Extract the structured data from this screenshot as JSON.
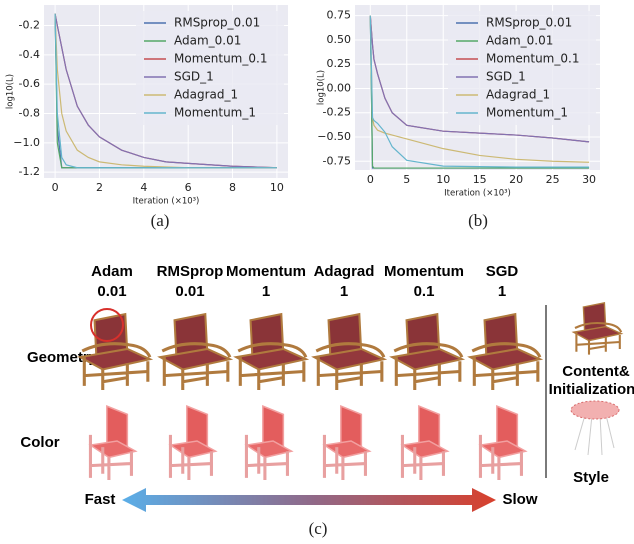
{
  "chart_data": [
    {
      "type": "line",
      "xlabel": "Iteration (×10³)",
      "ylabel": "log10(L)",
      "x": [
        0,
        0.1,
        0.3,
        0.5,
        1,
        1.5,
        2,
        3,
        4,
        5,
        6,
        8,
        10
      ],
      "xlim": [
        -0.5,
        10.5
      ],
      "xticks": [
        0,
        2,
        4,
        6,
        8,
        10
      ],
      "ylim": [
        -1.24,
        -0.06
      ],
      "yticks": [
        -1.2,
        {
          "value": -1.0,
          "label": "−1.0"
        },
        -0.8,
        -0.6,
        -0.4,
        -0.2
      ],
      "grid": true,
      "legend": "upper right",
      "series": [
        {
          "name": "RMSprop_0.01",
          "color": "#4c72b0",
          "values": [
            -0.12,
            -0.9,
            -1.17,
            -1.17,
            -1.17,
            -1.17,
            -1.17,
            -1.17,
            -1.17,
            -1.17,
            -1.17,
            -1.17,
            -1.17
          ]
        },
        {
          "name": "Adam_0.01",
          "color": "#55a868",
          "values": [
            -0.12,
            -1.0,
            -1.17,
            -1.17,
            -1.17,
            -1.17,
            -1.17,
            -1.17,
            -1.17,
            -1.17,
            -1.17,
            -1.17,
            -1.17
          ]
        },
        {
          "name": "Momentum_0.1",
          "color": "#c44e52",
          "values": [
            -0.12,
            -0.2,
            -0.35,
            -0.5,
            -0.75,
            -0.88,
            -0.96,
            -1.05,
            -1.1,
            -1.13,
            -1.14,
            -1.16,
            -1.17
          ]
        },
        {
          "name": "SGD_1",
          "color": "#8172b2",
          "values": [
            -0.12,
            -0.2,
            -0.35,
            -0.5,
            -0.75,
            -0.88,
            -0.96,
            -1.05,
            -1.1,
            -1.13,
            -1.14,
            -1.16,
            -1.17
          ]
        },
        {
          "name": "Adagrad_1",
          "color": "#ccb974",
          "values": [
            -0.12,
            -0.5,
            -0.8,
            -0.92,
            -1.05,
            -1.1,
            -1.13,
            -1.15,
            -1.16,
            -1.165,
            -1.17,
            -1.17,
            -1.17
          ]
        },
        {
          "name": "Momentum_1",
          "color": "#64b5cd",
          "values": [
            -0.12,
            -0.8,
            -1.1,
            -1.15,
            -1.17,
            -1.17,
            -1.17,
            -1.17,
            -1.17,
            -1.17,
            -1.17,
            -1.17,
            -1.17
          ]
        }
      ]
    },
    {
      "type": "line",
      "xlabel": "Iteration (×10³)",
      "ylabel": "log10(L)",
      "x": [
        0,
        0.3,
        0.5,
        1,
        2,
        3,
        5,
        10,
        15,
        20,
        25,
        30
      ],
      "xlim": [
        -2.1,
        31.5
      ],
      "xticks": [
        0,
        5,
        10,
        15,
        20,
        25,
        30
      ],
      "ylim": [
        -0.84,
        0.86
      ],
      "yticks": [
        -0.75,
        {
          "value": -0.5,
          "label": "−0.50"
        },
        -0.25,
        {
          "value": 0,
          "label": "0.00"
        },
        0.25,
        {
          "value": 0.5,
          "label": "0.50"
        },
        0.75
      ],
      "grid": true,
      "legend": "upper right",
      "series": [
        {
          "name": "RMSprop_0.01",
          "color": "#4c72b0",
          "values": [
            0.75,
            -0.82,
            -0.82,
            -0.82,
            -0.82,
            -0.82,
            -0.82,
            -0.82,
            -0.82,
            -0.82,
            -0.82,
            -0.82
          ]
        },
        {
          "name": "Adam_0.01",
          "color": "#55a868",
          "values": [
            0.75,
            -0.8,
            -0.82,
            -0.82,
            -0.82,
            -0.82,
            -0.82,
            -0.82,
            -0.82,
            -0.82,
            -0.82,
            -0.82
          ]
        },
        {
          "name": "Momentum_0.1",
          "color": "#c44e52",
          "values": [
            0.75,
            0.45,
            0.3,
            0.15,
            -0.1,
            -0.25,
            -0.38,
            -0.44,
            -0.46,
            -0.48,
            -0.51,
            -0.55
          ]
        },
        {
          "name": "SGD_1",
          "color": "#8172b2",
          "values": [
            0.75,
            0.45,
            0.3,
            0.15,
            -0.1,
            -0.25,
            -0.38,
            -0.44,
            -0.46,
            -0.48,
            -0.51,
            -0.55
          ]
        },
        {
          "name": "Adagrad_1",
          "color": "#ccb974",
          "values": [
            0.75,
            -0.3,
            -0.38,
            -0.43,
            -0.46,
            -0.48,
            -0.52,
            -0.62,
            -0.69,
            -0.73,
            -0.75,
            -0.76
          ]
        },
        {
          "name": "Momentum_1",
          "color": "#64b5cd",
          "values": [
            0.75,
            -0.3,
            -0.33,
            -0.36,
            -0.45,
            -0.6,
            -0.74,
            -0.8,
            -0.805,
            -0.81,
            -0.81,
            -0.81
          ]
        }
      ]
    }
  ],
  "figure": {
    "captions": [
      "(a)",
      "(b)",
      "(c)"
    ],
    "columns": [
      [
        "Adam",
        "0.01"
      ],
      [
        "RMSprop",
        "0.01"
      ],
      [
        "Momentum",
        "1"
      ],
      [
        "Adagrad",
        "1"
      ],
      [
        "Momentum",
        "0.1"
      ],
      [
        "SGD",
        "1"
      ]
    ],
    "rows": [
      "Geometry",
      "Color"
    ],
    "reference": {
      "content": [
        "Content&",
        "Initialization"
      ],
      "style": "Style"
    },
    "speed": {
      "fast": "Fast",
      "slow": "Slow"
    }
  }
}
